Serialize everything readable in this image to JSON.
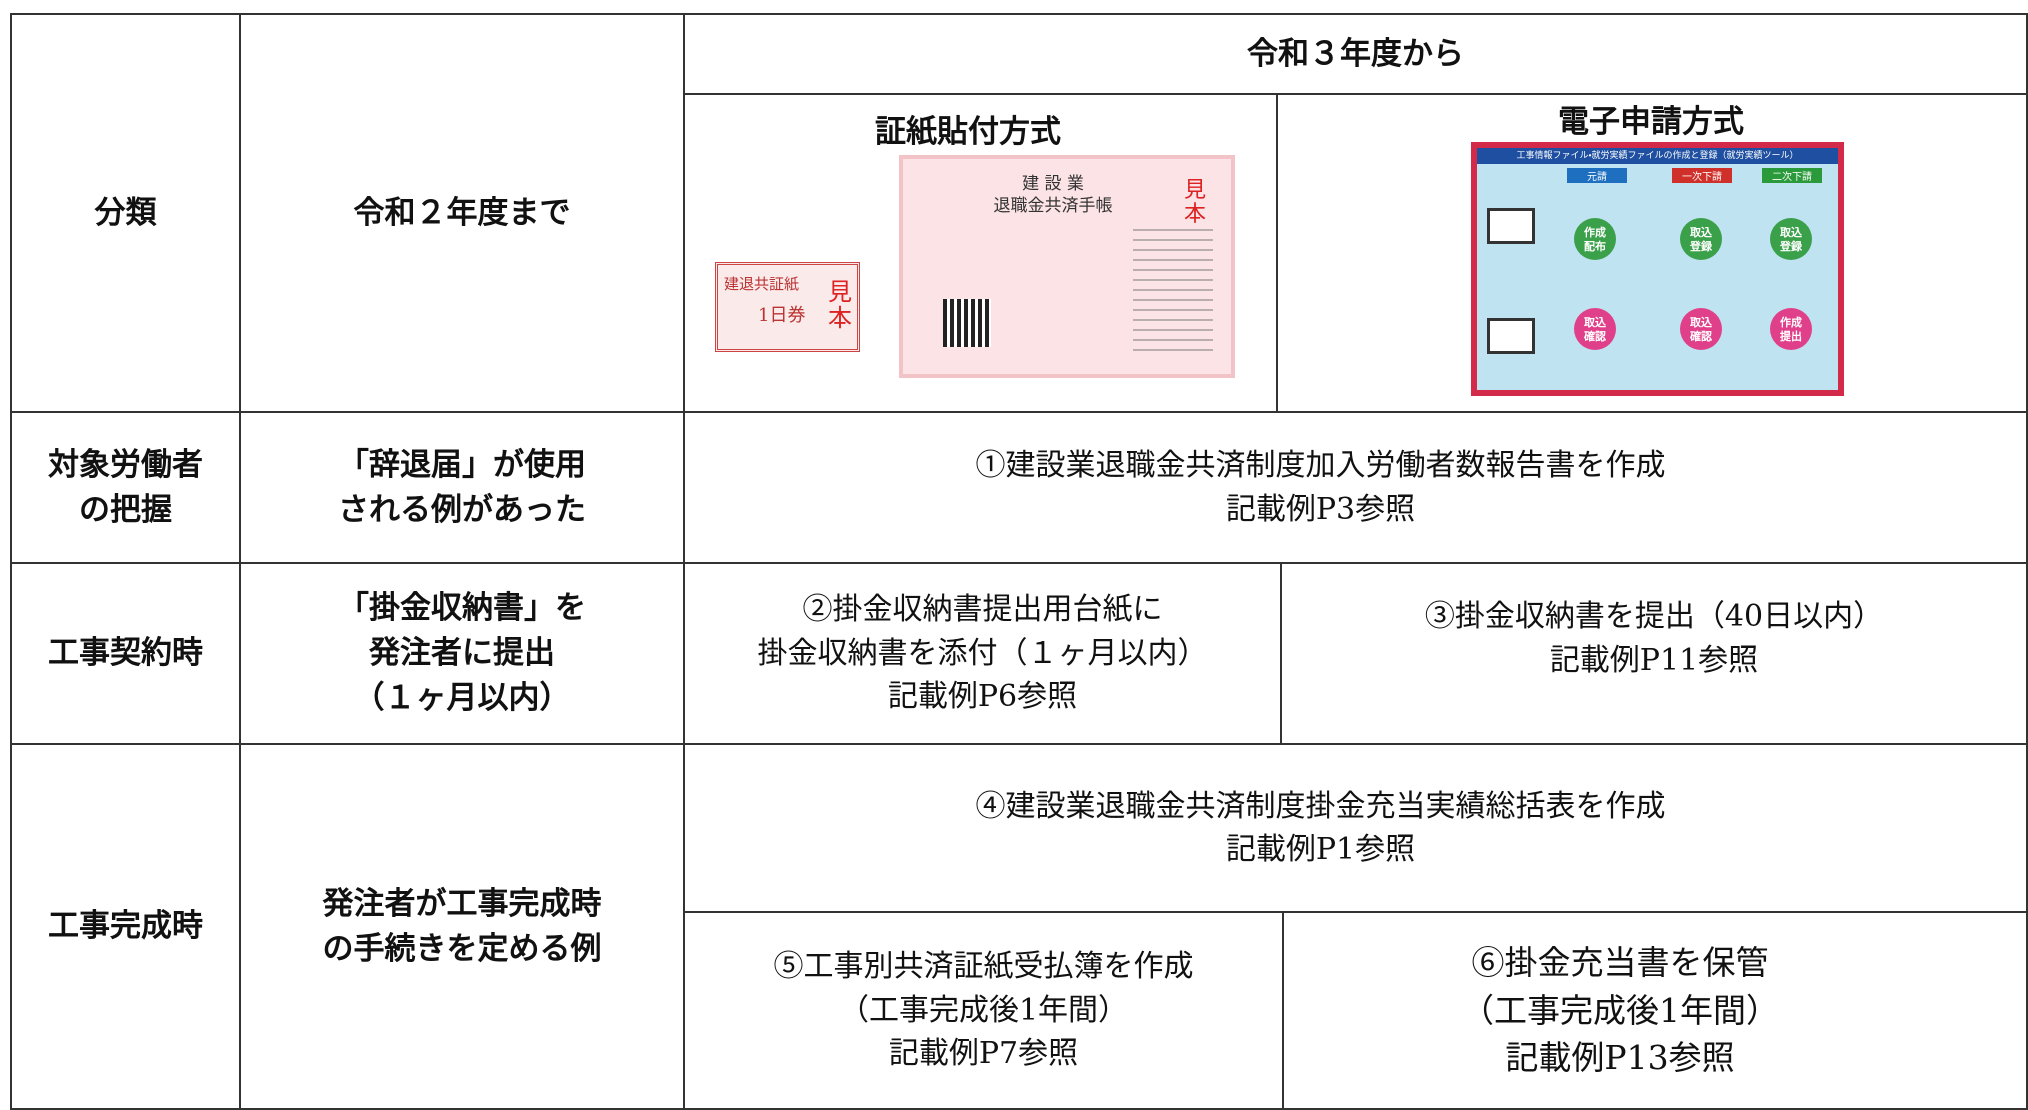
{
  "header": {
    "category": "分類",
    "before": "令和２年度まで",
    "after": "令和３年度から",
    "method_a": "証紙貼付方式",
    "method_b": "電子申請方式"
  },
  "stamp_image": {
    "stamp_name": "建退共証紙",
    "stamp_unit": "1日券",
    "sample": "見本",
    "book_title": "建 設 業\n退職金共済手帳"
  },
  "app_image": {
    "title": "工事情報ファイル・就労実績ファイルの作成と登録（就労実績ツール）",
    "prime": "元請",
    "first_sub": "一次下請",
    "second_sub": "二次下請",
    "create_distribute": "作成\n配布",
    "import_register": "取込\n登録",
    "import_check": "取込\n確認",
    "create_submit": "作成\n提出"
  },
  "rows": [
    {
      "category": "対象労働者\nの把握",
      "before": "「辞退届」が使用\nされる例があった",
      "after": "①建設業退職金共済制度加入労働者数報告書を作成\n記載例P3参照"
    },
    {
      "category": "工事契約時",
      "before": "「掛金収納書」を\n発注者に提出\n（１ヶ月以内）",
      "after_a": "②掛金収納書提出用台紙に\n掛金収納書を添付（１ヶ月以内）\n記載例P6参照",
      "after_b": "③掛金収納書を提出（40日以内）\n記載例P11参照"
    },
    {
      "category": "工事完成時",
      "before": "発注者が工事完成時\nの手続きを定める例",
      "after": "④建設業退職金共済制度掛金充当実績総括表を作成\n記載例P1参照",
      "after_a": "⑤工事別共済証紙受払簿を作成\n（工事完成後1年間）\n記載例P7参照",
      "after_b": "⑥掛金充当書を保管\n（工事完成後1年間）\n記載例P13参照"
    }
  ]
}
